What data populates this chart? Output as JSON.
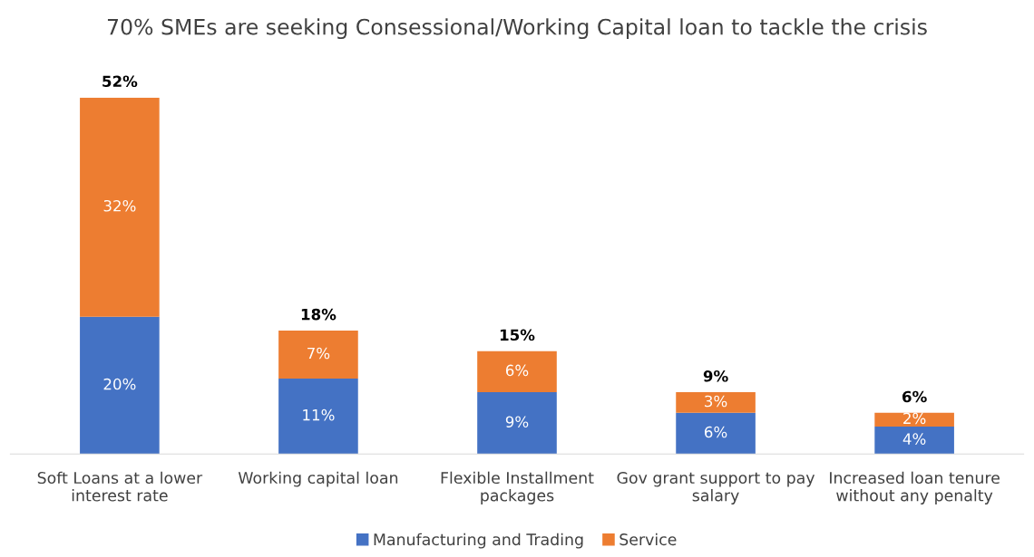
{
  "chart_data": {
    "type": "bar",
    "title": "70% SMEs are seeking Consessional/Working Capital loan to tackle the crisis",
    "categories": [
      "Soft Loans at a lower interest rate",
      "Working capital loan",
      "Flexible Installment packages",
      "Gov grant support to pay salary",
      "Increased loan tenure without any penalty"
    ],
    "series": [
      {
        "name": "Manufacturing and Trading",
        "color": "#4472c4",
        "values": [
          20,
          11,
          9,
          6,
          4
        ],
        "value_labels": [
          "20%",
          "11%",
          "9%",
          "6%",
          "4%"
        ]
      },
      {
        "name": "Service",
        "color": "#ed7d31",
        "values": [
          32,
          7,
          6,
          3,
          2
        ],
        "value_labels": [
          "32%",
          "7%",
          "6%",
          "3%",
          "2%"
        ]
      }
    ],
    "stacked": true,
    "totals": [
      "52%",
      "18%",
      "15%",
      "9%",
      "6%"
    ],
    "legend": "bottom",
    "grid": false
  }
}
